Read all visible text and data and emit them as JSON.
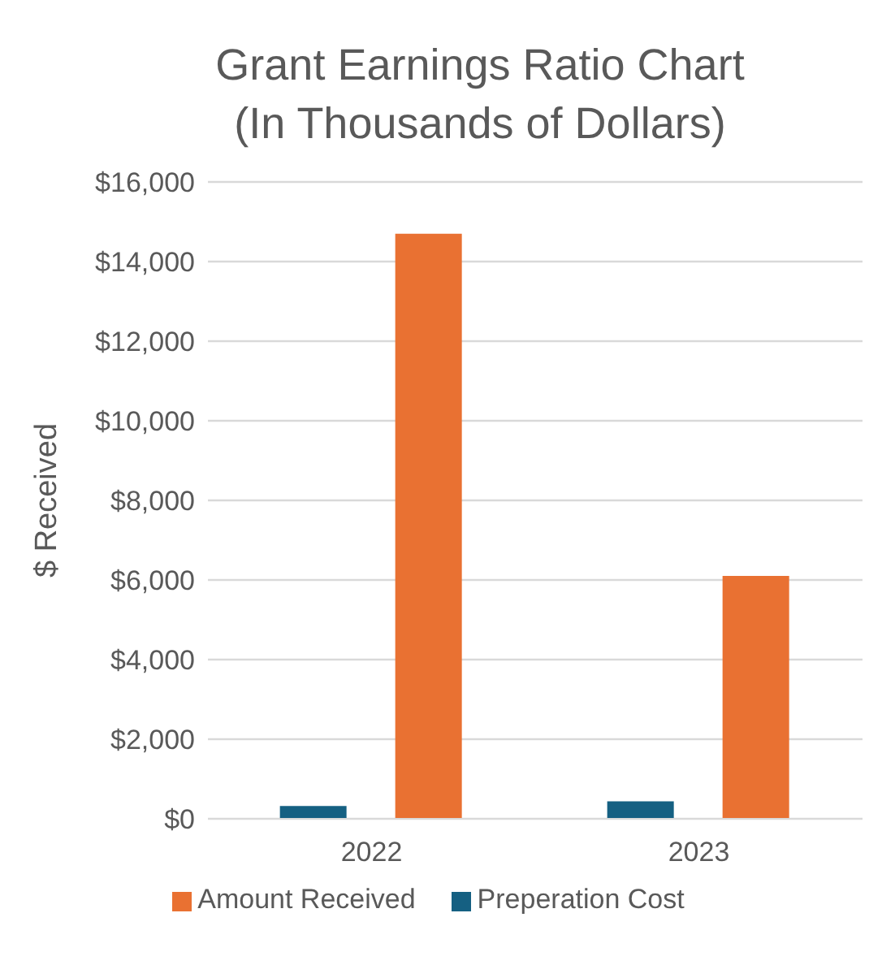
{
  "chart_data": {
    "type": "bar",
    "title": "Grant Earnings Ratio Chart\n(In Thousands of Dollars)",
    "ylabel": "$ Received",
    "categories": [
      "2022",
      "2023"
    ],
    "series": [
      {
        "name": "Preperation Cost",
        "color": "#156082",
        "values": [
          320,
          440
        ]
      },
      {
        "name": "Amount Received",
        "color": "#e97132",
        "values": [
          14700,
          6100
        ]
      }
    ],
    "ylim": [
      0,
      16000
    ],
    "yticks": [
      {
        "value": 0,
        "label": "$0"
      },
      {
        "value": 2000,
        "label": "$2,000"
      },
      {
        "value": 4000,
        "label": "$4,000"
      },
      {
        "value": 6000,
        "label": "$6,000"
      },
      {
        "value": 8000,
        "label": "$8,000"
      },
      {
        "value": 10000,
        "label": "$10,000"
      },
      {
        "value": 12000,
        "label": "$12,000"
      },
      {
        "value": 14000,
        "label": "$14,000"
      },
      {
        "value": 16000,
        "label": "$16,000"
      }
    ],
    "grid": "y",
    "legend": "bottom"
  }
}
